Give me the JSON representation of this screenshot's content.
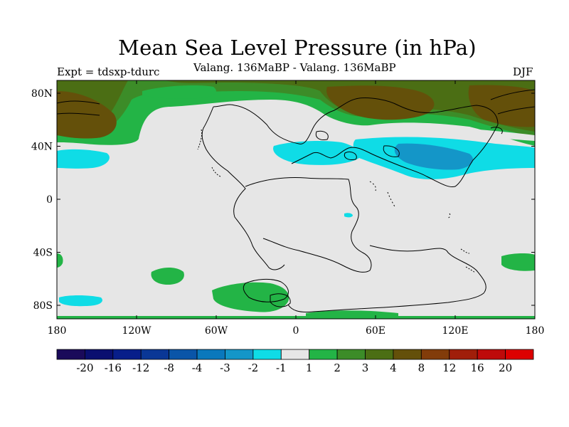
{
  "title": "Mean Sea Level Pressure (in hPa)",
  "experiment": "Expt = tdsxp-tdurc",
  "subtitle": "Valang. 136MaBP - Valang.  136MaBP",
  "season": "DJF",
  "axes": {
    "longitude_ticks": [
      "180",
      "120W",
      "60W",
      "0",
      "60E",
      "120E",
      "180"
    ],
    "latitude_ticks": [
      "80N",
      "40N",
      "0",
      "40S",
      "80S"
    ]
  },
  "colorbar": {
    "colors": [
      "#1a0a5a",
      "#0a0f70",
      "#081e8a",
      "#0a3796",
      "#0a55a8",
      "#0a78bc",
      "#1496c8",
      "#0fdce6",
      "#e6e6e6",
      "#23b446",
      "#3c8c28",
      "#4b6e14",
      "#64500a",
      "#823c0a",
      "#a01e0a",
      "#be0a0a",
      "#dc0000"
    ],
    "labels": [
      "-20",
      "-16",
      "-12",
      "-8",
      "-4",
      "-3",
      "-2",
      "-1",
      "1",
      "2",
      "3",
      "4",
      "8",
      "12",
      "16",
      "20"
    ]
  }
}
